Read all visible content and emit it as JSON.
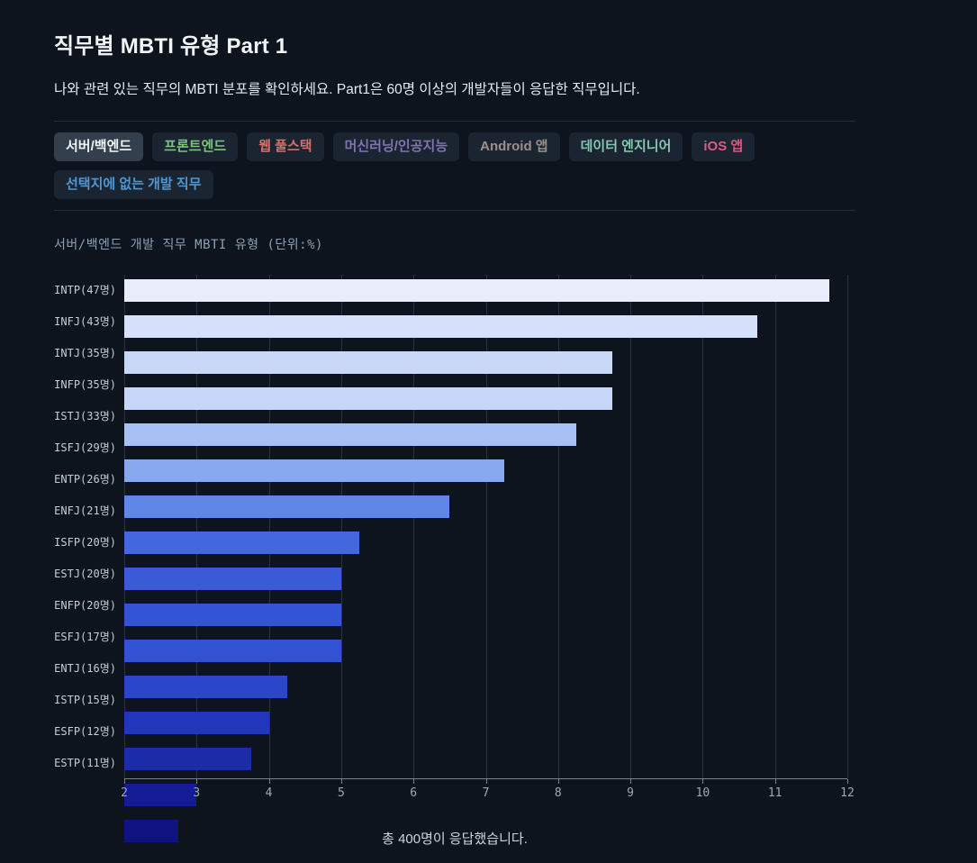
{
  "page": {
    "title": "직무별 MBTI 유형 Part 1",
    "subtitle": "나와 관련 있는 직무의 MBTI 분포를 확인하세요. Part1은 60명 이상의 개발자들이 응답한 직무입니다.",
    "footer": "총 400명이 응답했습니다."
  },
  "tabs": [
    {
      "label": "서버/백엔드",
      "color": "#f2f5f8",
      "selected": true
    },
    {
      "label": "프론트엔드",
      "color": "#7cc47e",
      "selected": false
    },
    {
      "label": "웹 풀스택",
      "color": "#d0726a",
      "selected": false
    },
    {
      "label": "머신러닝/인공지능",
      "color": "#7d74b0",
      "selected": false
    },
    {
      "label": "Android 앱",
      "color": "#9b9089",
      "selected": false
    },
    {
      "label": "데이터 엔지니어",
      "color": "#83c9b2",
      "selected": false
    },
    {
      "label": "iOS 앱",
      "color": "#e05a80",
      "selected": false
    },
    {
      "label": "선택지에 없는 개발 직무",
      "color": "#4f97d4",
      "selected": false
    }
  ],
  "chart_data": {
    "type": "bar",
    "orientation": "horizontal",
    "title": "서버/백엔드 개발 직무 MBTI 유형 (단위:%)",
    "categories": [
      "INTP(47명)",
      "INFJ(43명)",
      "INTJ(35명)",
      "INFP(35명)",
      "ISTJ(33명)",
      "ISFJ(29명)",
      "ENTP(26명)",
      "ENFJ(21명)",
      "ISFP(20명)",
      "ESTJ(20명)",
      "ENFP(20명)",
      "ESFJ(17명)",
      "ENTJ(16명)",
      "ISTP(15명)",
      "ESFP(12명)",
      "ESTP(11명)"
    ],
    "counts": [
      47,
      43,
      35,
      35,
      33,
      29,
      26,
      21,
      20,
      20,
      20,
      17,
      16,
      15,
      12,
      11
    ],
    "values": [
      11.75,
      10.75,
      8.75,
      8.75,
      8.25,
      7.25,
      6.5,
      5.25,
      5.0,
      5.0,
      5.0,
      4.25,
      4.0,
      3.75,
      3.0,
      2.75
    ],
    "bar_colors": [
      "#e9edfb",
      "#d5e0fa",
      "#c9d7f8",
      "#c6d5f8",
      "#a7c0f5",
      "#88a9f0",
      "#5f87e8",
      "#4267de",
      "#3a5ad8",
      "#3354d5",
      "#3153d3",
      "#2b46ca",
      "#2136bc",
      "#1c2ba6",
      "#131c95",
      "#0e137f"
    ],
    "xlabel": "",
    "ylabel": "",
    "xlim": [
      2,
      12
    ],
    "xticks": [
      2,
      3,
      4,
      5,
      6,
      7,
      8,
      9,
      10,
      11,
      12
    ],
    "grid": true,
    "legend": false
  },
  "theme": {
    "background": "#0d141d",
    "divider": "#242f3d",
    "tab_bg": "#1b2531",
    "tab_bg_selected": "#333f4d",
    "axis_color": "#76828f",
    "grid_color": "#2a3442",
    "text_primary": "#f2f5f8",
    "text_secondary": "#e6ebf1",
    "chart_title_color": "#8aa2b5",
    "tick_label_color": "#9aabb8",
    "ylabel_color": "#c3ced8",
    "footer_color": "#ccd5de"
  }
}
